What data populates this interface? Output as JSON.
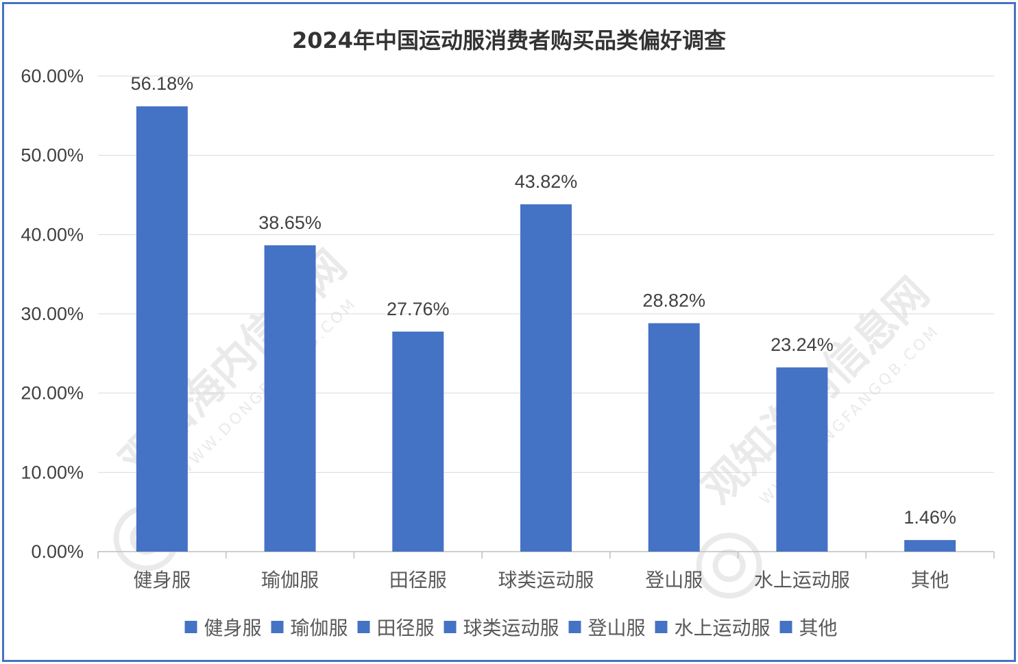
{
  "chart_data": {
    "type": "bar",
    "title": "2024年中国运动服消费者购买品类偏好调查",
    "categories": [
      "健身服",
      "瑜伽服",
      "田径服",
      "球类运动服",
      "登山服",
      "水上运动服",
      "其他"
    ],
    "values": [
      56.18,
      38.65,
      27.76,
      43.82,
      28.82,
      23.24,
      1.46
    ],
    "data_labels": [
      "56.18%",
      "38.65%",
      "27.76%",
      "43.82%",
      "28.82%",
      "23.24%",
      "1.46%"
    ],
    "ylim": [
      0,
      60
    ],
    "yticks": [
      0,
      10,
      20,
      30,
      40,
      50,
      60
    ],
    "ytick_labels": [
      "0.00%",
      "10.00%",
      "20.00%",
      "30.00%",
      "40.00%",
      "50.00%",
      "60.00%"
    ],
    "xlabel": "",
    "ylabel": "",
    "grid": true,
    "legend": "bottom",
    "bar_color": "#4472c4",
    "frame_color": "#4472c4"
  },
  "watermark": {
    "text": "观知海内信息网",
    "url": "WWW.DONGFANGQB.COM"
  }
}
